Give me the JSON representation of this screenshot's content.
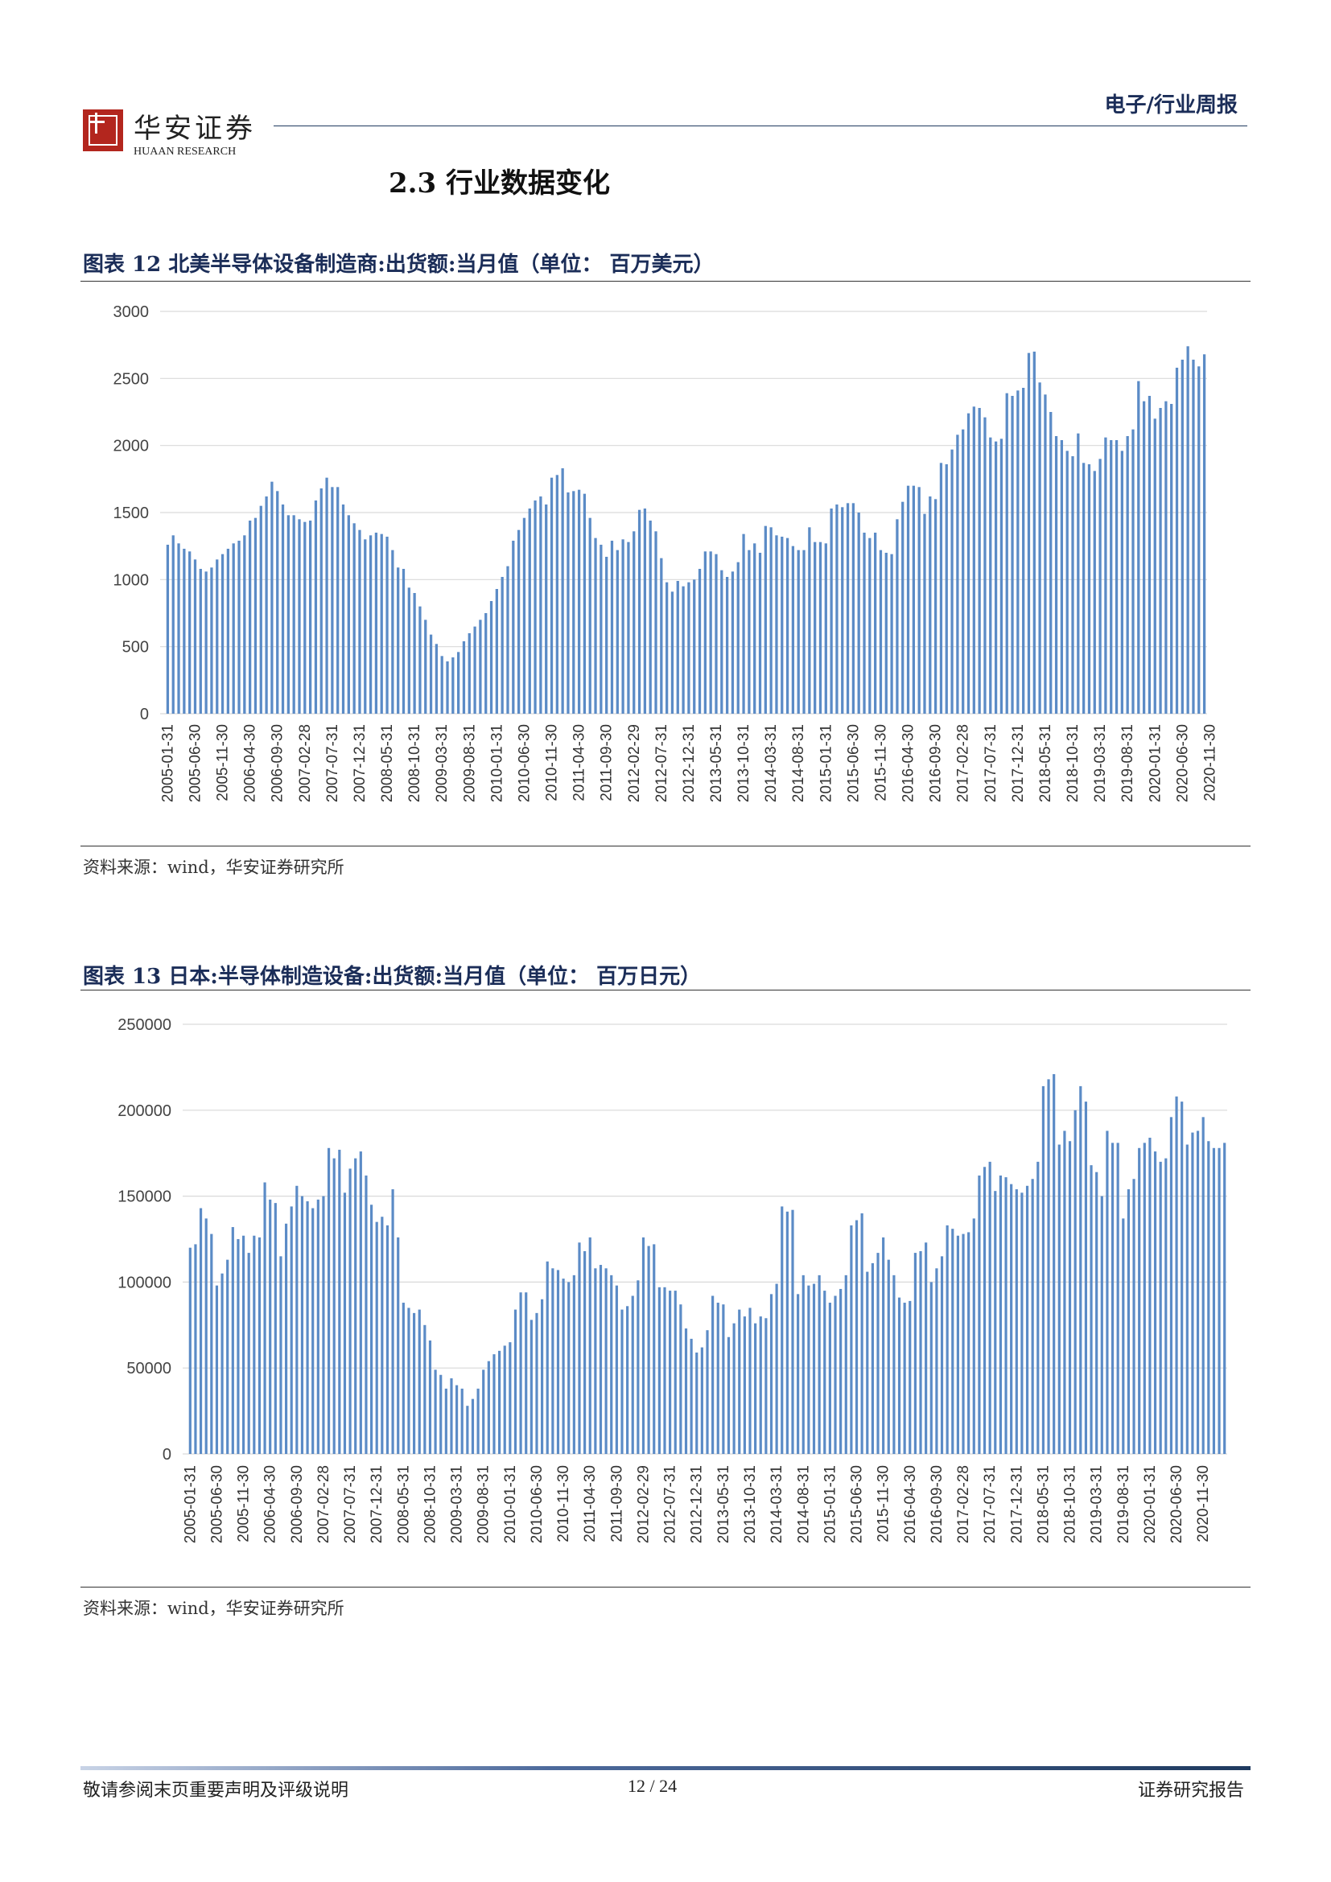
{
  "header": {
    "logo_name": "华安证券",
    "logo_sub": "HUAAN RESEARCH",
    "category": "电子/行业周报"
  },
  "section": {
    "title": "2.3  行业数据变化"
  },
  "footer": {
    "disclaimer": "敬请参阅末页重要声明及评级说明",
    "page": "12 / 24",
    "doc_type": "证券研究报告"
  },
  "colors": {
    "bar": "#5b8bc6",
    "grid": "#d9d9d9",
    "title": "#1b2d58"
  },
  "chart_data": [
    {
      "type": "bar",
      "title": "图表 12 北美半导体设备制造商:出货额:当月值（单位： 百万美元）",
      "source": "资料来源：wind，华安证券研究所",
      "xlabel": "",
      "ylabel": "",
      "ylim": [
        0,
        3000
      ],
      "yticks": [
        "0",
        "500",
        "1000",
        "1500",
        "2000",
        "2500",
        "3000"
      ],
      "tick_labels": [
        "2005-01-31",
        "2005-06-30",
        "2005-11-30",
        "2006-04-30",
        "2006-09-30",
        "2007-02-28",
        "2007-07-31",
        "2007-12-31",
        "2008-05-31",
        "2008-10-31",
        "2009-03-31",
        "2009-08-31",
        "2010-01-31",
        "2010-06-30",
        "2010-11-30",
        "2011-04-30",
        "2011-09-30",
        "2012-02-29",
        "2012-07-31",
        "2012-12-31",
        "2013-05-31",
        "2013-10-31",
        "2014-03-31",
        "2014-08-31",
        "2015-01-31",
        "2015-06-30",
        "2015-11-30",
        "2016-04-30",
        "2016-09-30",
        "2017-02-28",
        "2017-07-31",
        "2017-12-31",
        "2018-05-31",
        "2018-10-31",
        "2019-03-31",
        "2019-08-31",
        "2020-01-31",
        "2020-06-30",
        "2020-11-30"
      ],
      "grid": true,
      "start": "2005-01",
      "values": [
        1260,
        1330,
        1270,
        1230,
        1210,
        1150,
        1080,
        1060,
        1090,
        1150,
        1190,
        1230,
        1270,
        1290,
        1330,
        1440,
        1460,
        1550,
        1620,
        1730,
        1660,
        1560,
        1480,
        1480,
        1450,
        1430,
        1440,
        1590,
        1680,
        1760,
        1690,
        1690,
        1560,
        1480,
        1420,
        1370,
        1300,
        1330,
        1350,
        1340,
        1320,
        1220,
        1090,
        1080,
        940,
        900,
        800,
        700,
        590,
        520,
        430,
        390,
        420,
        460,
        540,
        600,
        650,
        700,
        750,
        840,
        930,
        1020,
        1100,
        1290,
        1370,
        1460,
        1530,
        1590,
        1620,
        1560,
        1760,
        1780,
        1830,
        1650,
        1660,
        1670,
        1640,
        1460,
        1310,
        1260,
        1170,
        1290,
        1220,
        1300,
        1280,
        1360,
        1520,
        1530,
        1440,
        1360,
        1160,
        980,
        910,
        990,
        950,
        980,
        1000,
        1080,
        1210,
        1210,
        1190,
        1070,
        1020,
        1060,
        1130,
        1340,
        1220,
        1270,
        1200,
        1400,
        1390,
        1330,
        1320,
        1310,
        1250,
        1220,
        1220,
        1390,
        1280,
        1280,
        1270,
        1530,
        1560,
        1540,
        1570,
        1570,
        1500,
        1350,
        1310,
        1350,
        1220,
        1200,
        1190,
        1450,
        1580,
        1700,
        1700,
        1690,
        1490,
        1620,
        1600,
        1870,
        1860,
        1970,
        2080,
        2120,
        2240,
        2290,
        2280,
        2210,
        2060,
        2030,
        2050,
        2390,
        2370,
        2410,
        2430,
        2690,
        2700,
        2470,
        2380,
        2250,
        2070,
        2040,
        1960,
        1920,
        2090,
        1870,
        1860,
        1810,
        1900,
        2060,
        2040,
        2040,
        1960,
        2070,
        2120,
        2480,
        2330,
        2370,
        2200,
        2280,
        2330,
        2310,
        2580,
        2640,
        2740,
        2640,
        2590,
        2680
      ]
    },
    {
      "type": "bar",
      "title": "图表 13 日本:半导体制造设备:出货额:当月值（单位： 百万日元）",
      "source": "资料来源：wind，华安证券研究所",
      "xlabel": "",
      "ylabel": "",
      "ylim": [
        0,
        250000
      ],
      "yticks": [
        "0",
        "50000",
        "100000",
        "150000",
        "200000",
        "250000"
      ],
      "tick_labels": [
        "2005-01-31",
        "2005-06-30",
        "2005-11-30",
        "2006-04-30",
        "2006-09-30",
        "2007-02-28",
        "2007-07-31",
        "2007-12-31",
        "2008-05-31",
        "2008-10-31",
        "2009-03-31",
        "2009-08-31",
        "2010-01-31",
        "2010-06-30",
        "2010-11-30",
        "2011-04-30",
        "2011-09-30",
        "2012-02-29",
        "2012-07-31",
        "2012-12-31",
        "2013-05-31",
        "2013-10-31",
        "2014-03-31",
        "2014-08-31",
        "2015-01-31",
        "2015-06-30",
        "2015-11-30",
        "2016-04-30",
        "2016-09-30",
        "2017-02-28",
        "2017-07-31",
        "2017-12-31",
        "2018-05-31",
        "2018-10-31",
        "2019-03-31",
        "2019-08-31",
        "2020-01-31",
        "2020-06-30",
        "2020-11-30"
      ],
      "grid": true,
      "start": "2005-01",
      "values": [
        120000,
        122000,
        143000,
        137000,
        128000,
        98000,
        105000,
        113000,
        132000,
        125000,
        127000,
        117000,
        127000,
        126000,
        158000,
        148000,
        146000,
        115000,
        134000,
        144000,
        156000,
        150000,
        147000,
        143000,
        148000,
        150000,
        178000,
        172000,
        177000,
        152000,
        166000,
        172000,
        176000,
        162000,
        145000,
        135000,
        138000,
        133000,
        154000,
        126000,
        88000,
        85000,
        82000,
        84000,
        75000,
        66000,
        49000,
        46000,
        38000,
        44000,
        40000,
        38000,
        28000,
        32000,
        38000,
        49000,
        54000,
        58000,
        60000,
        63000,
        65000,
        84000,
        94000,
        94000,
        78000,
        82000,
        90000,
        112000,
        108000,
        107000,
        102000,
        100000,
        104000,
        123000,
        118000,
        126000,
        108000,
        110000,
        108000,
        104000,
        98000,
        84000,
        86000,
        92000,
        101000,
        126000,
        121000,
        122000,
        97000,
        97000,
        95000,
        95000,
        87000,
        73000,
        67000,
        59000,
        62000,
        72000,
        92000,
        88000,
        87000,
        68000,
        76000,
        84000,
        80000,
        85000,
        76000,
        80000,
        79000,
        93000,
        99000,
        144000,
        141000,
        142000,
        93000,
        104000,
        98000,
        99000,
        104000,
        95000,
        88000,
        92000,
        96000,
        104000,
        133000,
        136000,
        140000,
        106000,
        111000,
        117000,
        126000,
        113000,
        104000,
        91000,
        88000,
        89000,
        117000,
        118000,
        123000,
        100000,
        108000,
        115000,
        133000,
        131000,
        127000,
        128000,
        129000,
        137000,
        162000,
        167000,
        170000,
        153000,
        162000,
        161000,
        157000,
        154000,
        152000,
        156000,
        160000,
        170000,
        214000,
        218000,
        221000,
        180000,
        188000,
        182000,
        200000,
        214000,
        205000,
        168000,
        164000,
        150000,
        188000,
        181000,
        181000,
        137000,
        154000,
        160000,
        178000,
        181000,
        184000,
        176000,
        170000,
        172000,
        196000,
        208000,
        205000,
        180000,
        187000,
        188000,
        196000,
        182000,
        178000,
        178000,
        181000
      ]
    }
  ]
}
